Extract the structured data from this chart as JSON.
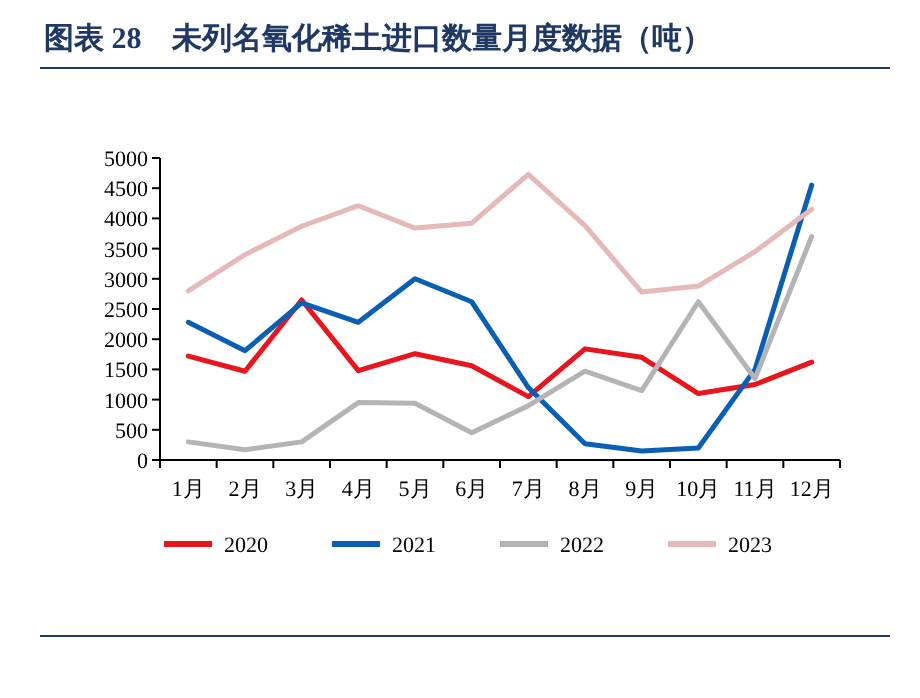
{
  "chart_data": {
    "type": "line",
    "title": "图表 28　未列名氧化稀土进口数量月度数据（吨）",
    "categories": [
      "1月",
      "2月",
      "3月",
      "4月",
      "5月",
      "6月",
      "7月",
      "8月",
      "9月",
      "10月",
      "11月",
      "12月"
    ],
    "series": [
      {
        "name": "2020",
        "color": "#e8141e",
        "values": [
          1720,
          1470,
          2650,
          1480,
          1760,
          1560,
          1050,
          1840,
          1700,
          1100,
          1250,
          1620
        ]
      },
      {
        "name": "2021",
        "color": "#0a5fb4",
        "values": [
          2280,
          1810,
          2600,
          2280,
          3000,
          2620,
          1200,
          270,
          150,
          200,
          1500,
          4550
        ]
      },
      {
        "name": "2022",
        "color": "#b4b4b4",
        "values": [
          300,
          170,
          300,
          950,
          940,
          450,
          900,
          1470,
          1150,
          2620,
          1350,
          3700
        ]
      },
      {
        "name": "2023",
        "color": "#e6b9b9",
        "values": [
          2800,
          3400,
          3870,
          4210,
          3840,
          3920,
          4730,
          3880,
          2780,
          2880,
          3450,
          4150
        ]
      }
    ],
    "ylim": [
      0,
      5000
    ],
    "yticks": [
      0,
      500,
      1000,
      1500,
      2000,
      2500,
      3000,
      3500,
      4000,
      4500,
      5000
    ],
    "grid": false,
    "legend": "bottom",
    "marker": "none",
    "line_style": "solid"
  }
}
